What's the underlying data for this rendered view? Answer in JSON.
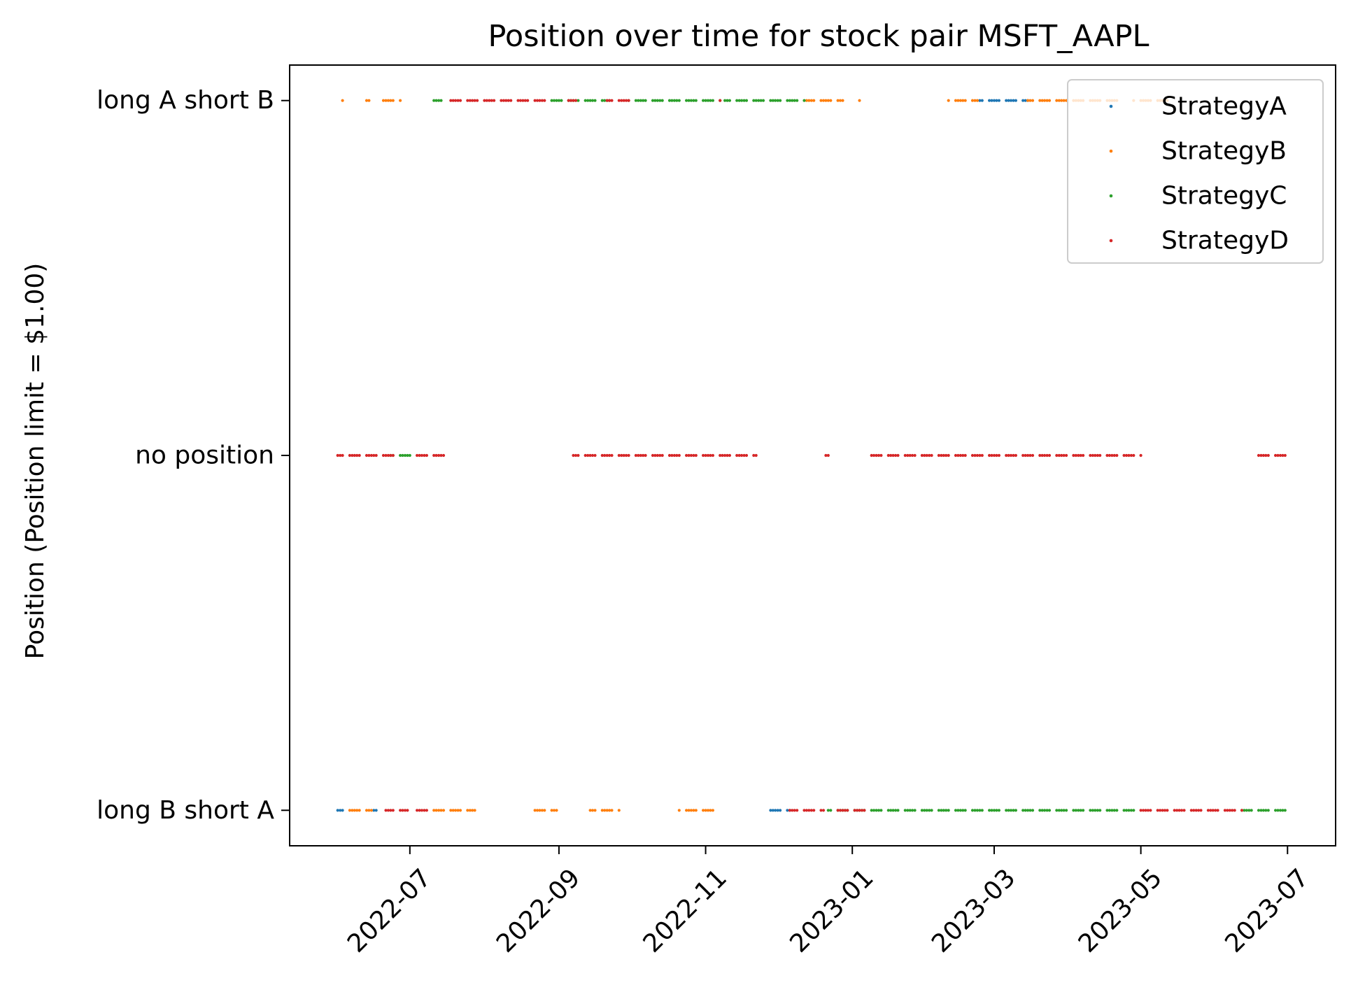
{
  "chart_data": {
    "type": "scatter",
    "title": "Position over time for stock pair MSFT_AAPL",
    "xlabel": "",
    "ylabel": "Position (Position limit = $1.00)",
    "x_tick_labels": [
      "2022-07",
      "2022-09",
      "2022-11",
      "2023-01",
      "2023-03",
      "2023-05",
      "2023-07"
    ],
    "x_ticks": [
      "2022-07-01",
      "2022-09-01",
      "2022-11-01",
      "2023-01-01",
      "2023-03-01",
      "2023-05-01",
      "2023-07-01"
    ],
    "xlim": [
      "2022-05-12",
      "2023-07-21"
    ],
    "y_tick_labels": [
      "long B short A",
      "no position",
      "long A short B"
    ],
    "y_ticks": [
      -1,
      0,
      1
    ],
    "ylim": [
      -1.1,
      1.1
    ],
    "legend": {
      "location": "upper right"
    },
    "series": [
      {
        "name": "StrategyA",
        "color": "#1f77b4",
        "points": [
          {
            "from": "2022-06-01",
            "to": "2022-06-03",
            "y": -1
          },
          {
            "from": "2022-06-16",
            "to": "2022-06-18",
            "y": -1
          },
          {
            "from": "2022-11-28",
            "to": "2022-12-06",
            "y": -1
          },
          {
            "from": "2023-02-23",
            "to": "2023-03-15",
            "y": 1
          }
        ]
      },
      {
        "name": "StrategyB",
        "color": "#ff7f0e",
        "points": [
          {
            "from": "2022-06-03",
            "to": "2022-06-03",
            "y": 1
          },
          {
            "from": "2022-06-12",
            "to": "2022-06-14",
            "y": 1
          },
          {
            "from": "2022-06-19",
            "to": "2022-06-24",
            "y": 1
          },
          {
            "from": "2022-06-27",
            "to": "2022-06-27",
            "y": 1
          },
          {
            "from": "2022-12-13",
            "to": "2022-12-28",
            "y": 1
          },
          {
            "from": "2023-01-04",
            "to": "2023-01-04",
            "y": 1
          },
          {
            "from": "2023-02-10",
            "to": "2023-02-22",
            "y": 1
          },
          {
            "from": "2023-03-15",
            "to": "2023-04-22",
            "y": 1
          },
          {
            "from": "2023-04-28",
            "to": "2023-05-14",
            "y": 1
          },
          {
            "from": "2022-06-05",
            "to": "2022-06-15",
            "y": -1
          },
          {
            "from": "2022-07-10",
            "to": "2022-07-28",
            "y": -1
          },
          {
            "from": "2022-08-22",
            "to": "2022-08-31",
            "y": -1
          },
          {
            "from": "2022-09-14",
            "to": "2022-09-26",
            "y": -1
          },
          {
            "from": "2022-10-21",
            "to": "2022-11-05",
            "y": -1
          }
        ]
      },
      {
        "name": "StrategyC",
        "color": "#2ca02c",
        "points": [
          {
            "from": "2022-07-11",
            "to": "2022-07-14",
            "y": 1
          },
          {
            "from": "2022-08-29",
            "to": "2022-09-22",
            "y": 1
          },
          {
            "from": "2022-09-30",
            "to": "2022-11-07",
            "y": 1
          },
          {
            "from": "2022-11-09",
            "to": "2022-12-12",
            "y": 1
          },
          {
            "from": "2022-06-23",
            "to": "2022-07-01",
            "y": 0
          },
          {
            "from": "2022-12-22",
            "to": "2023-04-28",
            "y": -1
          },
          {
            "from": "2023-06-12",
            "to": "2023-06-30",
            "y": -1
          }
        ]
      },
      {
        "name": "StrategyD",
        "color": "#d62728",
        "points": [
          {
            "from": "2022-07-16",
            "to": "2022-08-28",
            "y": 1
          },
          {
            "from": "2022-09-05",
            "to": "2022-09-08",
            "y": 1
          },
          {
            "from": "2022-09-21",
            "to": "2022-09-30",
            "y": 1
          },
          {
            "from": "2022-11-05",
            "to": "2022-11-07",
            "y": 1
          },
          {
            "from": "2022-06-01",
            "to": "2022-06-25",
            "y": 0
          },
          {
            "from": "2022-07-02",
            "to": "2022-07-16",
            "y": 0
          },
          {
            "from": "2022-09-07",
            "to": "2022-11-22",
            "y": 0
          },
          {
            "from": "2022-12-21",
            "to": "2022-12-22",
            "y": 0
          },
          {
            "from": "2023-01-08",
            "to": "2023-05-01",
            "y": 0
          },
          {
            "from": "2023-06-17",
            "to": "2023-06-30",
            "y": 0
          },
          {
            "from": "2022-06-21",
            "to": "2022-06-30",
            "y": -1
          },
          {
            "from": "2022-07-04",
            "to": "2022-07-08",
            "y": -1
          },
          {
            "from": "2022-12-06",
            "to": "2022-12-20",
            "y": -1
          },
          {
            "from": "2022-12-24",
            "to": "2022-12-31",
            "y": -1
          },
          {
            "from": "2023-01-01",
            "to": "2023-01-07",
            "y": -1
          },
          {
            "from": "2023-05-01",
            "to": "2023-06-12",
            "y": -1
          }
        ]
      }
    ]
  }
}
